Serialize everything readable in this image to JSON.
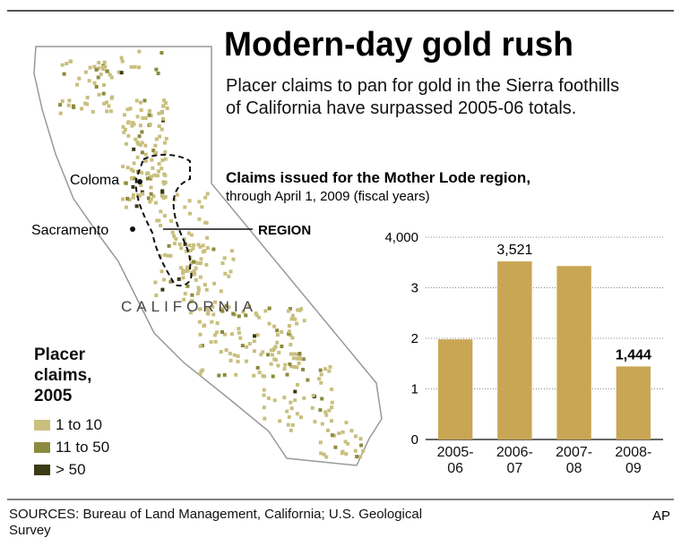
{
  "header": {
    "title": "Modern-day gold rush",
    "subtitle": "Placer claims to pan for gold in the Sierra foothills of California have surpassed 2005-06 totals."
  },
  "map": {
    "labels": [
      "Coloma",
      "Sacramento",
      "REGION",
      "CALIFORNIA"
    ],
    "legend": {
      "title": "Placer claims, 2005",
      "items": [
        {
          "label": "1 to 10",
          "color": "#c9bf7e"
        },
        {
          "label": "11 to 50",
          "color": "#8c8a3e"
        },
        {
          "label": "> 50",
          "color": "#3a3a14"
        }
      ]
    }
  },
  "chart_data": {
    "type": "bar",
    "title": "Claims issued for the Mother Lode region,",
    "subtitle": "through April 1, 2009 (fiscal years)",
    "categories": [
      "2005-06",
      "2006-07",
      "2007-08",
      "2008-09"
    ],
    "values": [
      1980,
      3521,
      3430,
      1444
    ],
    "value_labels": [
      null,
      "3,521",
      null,
      "1,444"
    ],
    "color": "#c9a654",
    "ylim": [
      0,
      4000
    ],
    "yticks": [
      0,
      {
        "value": 1000,
        "label": "1"
      },
      {
        "value": 2000,
        "label": "2"
      },
      {
        "value": 3000,
        "label": "3"
      },
      {
        "value": 4000,
        "label": "4,000"
      }
    ],
    "grid": true
  },
  "footer": {
    "sources": "SOURCES: Bureau of Land Management, California; U.S. Geological Survey",
    "credit": "AP"
  }
}
